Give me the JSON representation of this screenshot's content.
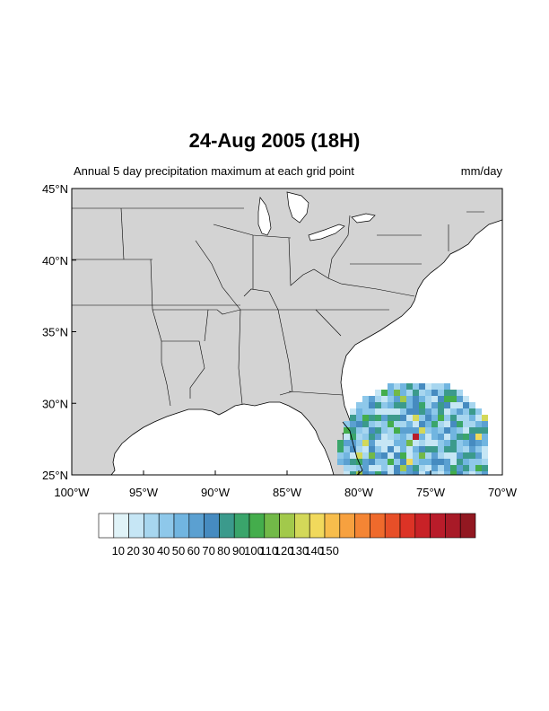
{
  "title": "24-Aug 2005 (18H)",
  "left_string": "Annual 5 day precipitation maximum at each grid point",
  "right_string": "mm/day",
  "map": {
    "projection": "cylindrical-equidistant",
    "lon_range": [
      -100,
      -70
    ],
    "lat_range": [
      25,
      45
    ],
    "land_color": "#d3d3d3",
    "ocean_color": "#ffffff",
    "x_ticks": [
      "100°W",
      "95°W",
      "90°W",
      "85°W",
      "80°W",
      "75°W",
      "70°W"
    ],
    "y_ticks": [
      "45°N",
      "40°N",
      "35°N",
      "30°N",
      "25°N"
    ]
  },
  "colorbar": {
    "colors": [
      "#ffffff",
      "#e0f3f8",
      "#c6e6f5",
      "#a7d6ef",
      "#8ec8ea",
      "#71b5e0",
      "#5ba0d1",
      "#468bc0",
      "#3b9a8c",
      "#3aa56b",
      "#44ad4c",
      "#72b948",
      "#a2c94b",
      "#d3d859",
      "#f1d95c",
      "#f7bd4c",
      "#f7a13f",
      "#f48534",
      "#ef6a2c",
      "#e74f28",
      "#dc3326",
      "#c82227",
      "#b91c2a",
      "#a81a27",
      "#921821"
    ],
    "labels": [
      "10",
      "20",
      "30",
      "40",
      "50",
      "60",
      "70",
      "80",
      "90",
      "100",
      "110",
      "120",
      "130",
      "140",
      "150"
    ]
  }
}
